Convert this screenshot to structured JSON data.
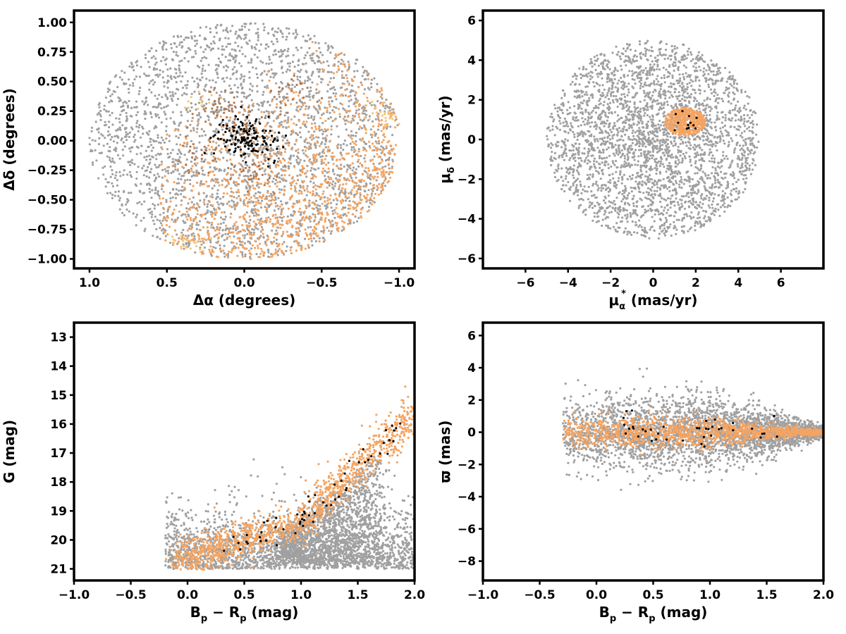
{
  "colors": {
    "field": "#a0a0a0",
    "members": "#f4a462",
    "brown_group": "#b07850",
    "gold_group": "#f2c878",
    "core": "#000000"
  },
  "chart_data": [
    {
      "type": "scatter",
      "id": "sky",
      "xlabel": "Δα (degrees)",
      "ylabel": "Δδ (degrees)",
      "xlim": [
        1.1,
        -1.1
      ],
      "ylim": [
        -1.08,
        1.1
      ],
      "x_inverted": true,
      "xticks": [
        1.0,
        0.5,
        0.0,
        -0.5,
        -1.0
      ],
      "xtick_labels": [
        "1.0",
        "0.5",
        "0.0",
        "−0.5",
        "−1.0"
      ],
      "yticks": [
        1.0,
        0.75,
        0.5,
        0.25,
        0.0,
        -0.25,
        -0.5,
        -0.75,
        -1.0
      ],
      "ytick_labels": [
        "1.00",
        "0.75",
        "0.50",
        "0.25",
        "0.00",
        "−0.25",
        "−0.50",
        "−0.75",
        "−1.00"
      ],
      "grid": false,
      "series": [
        {
          "role": "field",
          "color": "#a0a0a0",
          "count": 2600,
          "distribution": "uniform disk radius 1.0 centered (0,0)"
        },
        {
          "role": "members",
          "color": "#f4a462",
          "count": 1100,
          "distribution": "southwest crescent, x in [-1.0, 0.5], y in [-1.0, 0.2]"
        },
        {
          "role": "brown_group",
          "color": "#b07850",
          "count": 180,
          "distribution": "patches near (0.0, 0.1), (-0.3, 0.4), (0.3, -0.1)"
        },
        {
          "role": "gold_group",
          "color": "#f2c878",
          "count": 60,
          "distribution": "patches near (0.35, -0.9), (-0.9, 0.2)"
        },
        {
          "role": "core",
          "color": "#000000",
          "count": 150,
          "distribution": "cluster near (0.0, 0.0), spread 0.15"
        }
      ]
    },
    {
      "type": "scatter",
      "id": "proper_motion",
      "xlabel": "μ",
      "xlabel_sub": "α",
      "xlabel_sup": "*",
      "xlabel_units": " (mas/yr)",
      "ylabel": "μ",
      "ylabel_sub": "δ",
      "ylabel_units": " (mas/yr)",
      "xlim": [
        -8,
        8
      ],
      "ylim": [
        -6.5,
        6.5
      ],
      "xticks": [
        -6,
        -4,
        -2,
        0,
        2,
        4,
        6
      ],
      "xtick_labels": [
        "−6",
        "−4",
        "−2",
        "0",
        "2",
        "4",
        "6"
      ],
      "yticks": [
        6,
        4,
        2,
        0,
        -2,
        -4,
        -6
      ],
      "ytick_labels": [
        "6",
        "4",
        "2",
        "0",
        "−2",
        "−4",
        "−6"
      ],
      "grid": false,
      "series": [
        {
          "role": "field",
          "color": "#a0a0a0",
          "count": 3000,
          "distribution": "disk radius 5 centered (0,0), denser toward (1.5,1)"
        },
        {
          "role": "members",
          "color": "#f4a462",
          "count": 500,
          "distribution": "clump centered (1.5, 0.9), radius 0.9"
        },
        {
          "role": "core",
          "color": "#000000",
          "count": 12,
          "distribution": "inside member clump"
        }
      ]
    },
    {
      "type": "scatter",
      "id": "cmd",
      "xlabel": "B",
      "xlabel_sub1": "p",
      "xlabel_mid": " − R",
      "xlabel_sub2": "p",
      "xlabel_units": " (mag)",
      "ylabel": "G (mag)",
      "xlim": [
        -1.0,
        2.0
      ],
      "ylim": [
        21.4,
        12.5
      ],
      "y_inverted": true,
      "xticks": [
        -1.0,
        -0.5,
        0.0,
        0.5,
        1.0,
        1.5,
        2.0
      ],
      "xtick_labels": [
        "−1.0",
        "−0.5",
        "0.0",
        "0.5",
        "1.0",
        "1.5",
        "2.0"
      ],
      "yticks": [
        21,
        20,
        19,
        18,
        17,
        16,
        15,
        14,
        13
      ],
      "ytick_labels": [
        "21",
        "20",
        "19",
        "18",
        "17",
        "16",
        "15",
        "14",
        "13"
      ],
      "grid": false,
      "series": [
        {
          "role": "field",
          "color": "#a0a0a0",
          "count": 3400,
          "distribution": "G 18-21 broad colour 0-2, plus band G 17-19 colour 0.8-1.6"
        },
        {
          "role": "members",
          "color": "#f4a462",
          "count": 1200,
          "distribution": "sequence from (0.2, 20.5) to (1.0, 19.5) curving down to (2.0, 15.7)"
        },
        {
          "role": "core",
          "color": "#000000",
          "count": 60,
          "distribution": "along sequence"
        }
      ]
    },
    {
      "type": "scatter",
      "id": "parallax",
      "xlabel": "B",
      "xlabel_sub1": "p",
      "xlabel_mid": " − R",
      "xlabel_sub2": "p",
      "xlabel_units": " (mag)",
      "ylabel": "ϖ (mas)",
      "xlim": [
        -1.0,
        2.0
      ],
      "ylim": [
        -9.2,
        6.8
      ],
      "xticks": [
        -1.0,
        -0.5,
        0.0,
        0.5,
        1.0,
        1.5,
        2.0
      ],
      "xtick_labels": [
        "−1.0",
        "−0.5",
        "0.0",
        "0.5",
        "1.0",
        "1.5",
        "2.0"
      ],
      "yticks": [
        6,
        4,
        2,
        0,
        -2,
        -4,
        -6,
        -8
      ],
      "ytick_labels": [
        "6",
        "4",
        "2",
        "0",
        "−2",
        "−4",
        "−6",
        "−8"
      ],
      "grid": false,
      "series": [
        {
          "role": "field",
          "color": "#a0a0a0",
          "count": 3200,
          "distribution": "centered on 0, spread ~1.2 narrowing to ~0.3 at colour 2.0"
        },
        {
          "role": "members",
          "color": "#f4a462",
          "count": 1300,
          "distribution": "centered on 0, spread ~0.5, narrowing at red colours"
        },
        {
          "role": "core",
          "color": "#000000",
          "count": 40,
          "distribution": "near 0"
        }
      ]
    }
  ]
}
